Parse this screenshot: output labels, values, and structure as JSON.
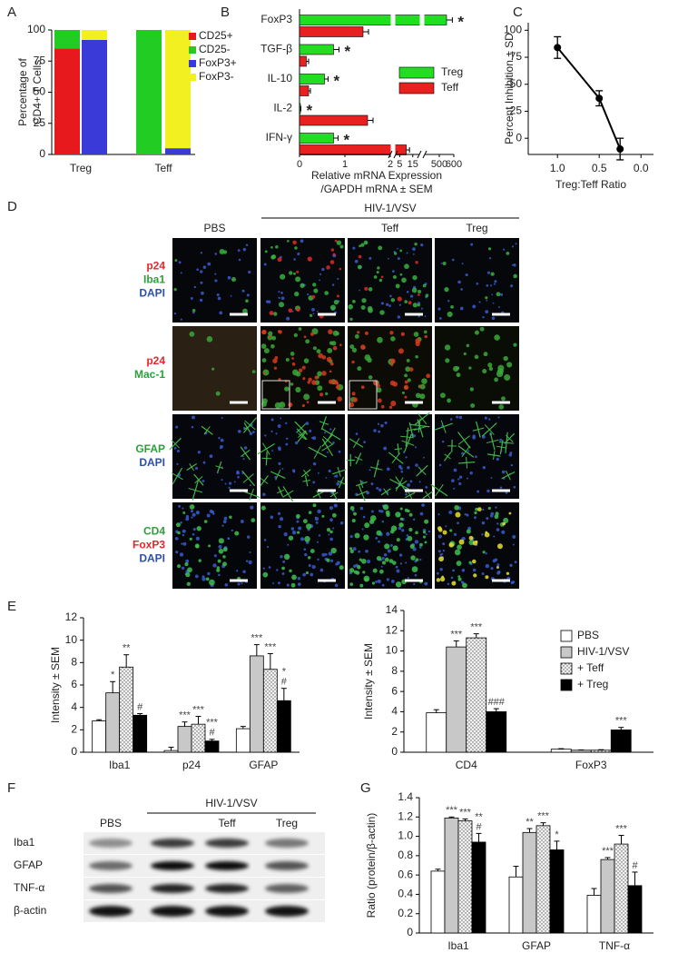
{
  "chart_data": [
    {
      "panel": "A",
      "type": "stacked_bar",
      "ylabel": [
        "Percentage of",
        "CD4+ T Cells"
      ],
      "categories": [
        "Treg",
        null,
        "Teff",
        null
      ],
      "series": [
        {
          "name": "CD25+",
          "color": "#e8191c",
          "values": [
            85,
            null,
            0,
            null
          ]
        },
        {
          "name": "CD25-",
          "color": "#22cc22",
          "values": [
            15,
            null,
            100,
            null
          ]
        },
        {
          "name": "FoxP3+",
          "color": "#3a3ad8",
          "values": [
            null,
            92,
            null,
            5
          ]
        },
        {
          "name": "FoxP3-",
          "color": "#f2f020",
          "values": [
            null,
            8,
            null,
            95
          ]
        }
      ],
      "ylim": [
        0,
        100
      ],
      "yticks": [
        0,
        25,
        50,
        75,
        100
      ]
    },
    {
      "panel": "B",
      "type": "barh",
      "categories": [
        "FoxP3",
        "TGF-β",
        "IL-10",
        "IL-2",
        "IFN-γ"
      ],
      "series": [
        {
          "name": "Treg",
          "color": "#22dd22",
          "values": [
            550,
            0.75,
            0.55,
            0.02,
            0.75
          ],
          "errors": [
            40,
            0.12,
            0.08,
            0.01,
            0.1
          ]
        },
        {
          "name": "Teff",
          "color": "#e82020",
          "values": [
            1.4,
            0.15,
            0.2,
            1.5,
            10
          ],
          "errors": [
            0.12,
            0.05,
            0.04,
            0.12,
            2.5
          ]
        }
      ],
      "annotations": [
        "*",
        "*",
        "*",
        "*",
        "*"
      ],
      "xlabel": [
        "Relative mRNA Expression",
        "/GAPDH mRNA ± SEM"
      ],
      "xlim": [
        0,
        600
      ],
      "xbreaks": [
        [
          0,
          2
        ],
        [
          2,
          20
        ],
        [
          400,
          600
        ]
      ],
      "xticks": [
        0,
        1,
        2,
        5,
        15,
        500,
        600
      ]
    },
    {
      "panel": "C",
      "type": "line",
      "x": [
        1,
        0.5,
        0.25
      ],
      "values": [
        84,
        37,
        -10
      ],
      "errors": [
        10,
        7,
        10
      ],
      "color": "#000000",
      "xlabel": "Treg:Teff Ratio",
      "ylabel": "Percent Inhibition ± SD",
      "xlim": [
        1.35,
        -0.15
      ],
      "ylim": [
        -15,
        107
      ],
      "xticks": [
        {
          "value": 1,
          "label": "1.0"
        },
        {
          "value": 0.5,
          "label": "0.5"
        },
        {
          "value": 0,
          "label": "0.0"
        }
      ],
      "yticks": [
        0,
        25,
        50,
        75,
        100
      ]
    },
    {
      "panel": "E",
      "type": "bar",
      "ylabel": "Intensity ± SEM",
      "categories": [
        "Iba1",
        "p24",
        "GFAP"
      ],
      "series": [
        {
          "color": "#ffffff",
          "values": [
            2.8,
            0.15,
            2.1
          ],
          "errors": [
            0.1,
            0.3,
            0.2
          ]
        },
        {
          "color": "#c8c8c8",
          "values": [
            5.3,
            2.3,
            8.6
          ],
          "errors": [
            1.0,
            0.4,
            1.0
          ],
          "annotations": [
            [
              "*"
            ],
            [
              "***"
            ],
            [
              "***"
            ]
          ]
        },
        {
          "color": "#eeeeee",
          "pattern": "dotted",
          "values": [
            7.6,
            2.5,
            7.4
          ],
          "errors": [
            1.1,
            0.7,
            1.4
          ],
          "annotations": [
            [
              "**"
            ],
            [
              "***"
            ],
            [
              "***"
            ]
          ]
        },
        {
          "color": "#000000",
          "values": [
            3.3,
            1.0,
            4.6
          ],
          "errors": [
            0.15,
            0.15,
            1.1
          ],
          "annotations": [
            [
              "#"
            ],
            [
              "***",
              "#"
            ],
            [
              "*",
              "#"
            ]
          ]
        }
      ],
      "ylim": [
        0,
        12
      ],
      "yticks": [
        0,
        2,
        4,
        6,
        8,
        10,
        12
      ]
    },
    {
      "type": "bar",
      "ylabel": "Intensity ± SEM",
      "categories": [
        "CD4",
        "FoxP3"
      ],
      "series": [
        {
          "name": "PBS",
          "color": "#ffffff",
          "values": [
            3.9,
            0.3
          ],
          "errors": [
            0.3,
            0.05
          ]
        },
        {
          "name": "HIV-1/VSV",
          "color": "#c8c8c8",
          "values": [
            10.4,
            0.2
          ],
          "errors": [
            0.6,
            0.03
          ],
          "annotations": [
            [
              "***"
            ],
            null
          ]
        },
        {
          "name": "+ Teff",
          "color": "#eeeeee",
          "pattern": "dotted",
          "values": [
            11.3,
            0.2
          ],
          "errors": [
            0.4,
            0.05
          ],
          "annotations": [
            [
              "***"
            ],
            null
          ]
        },
        {
          "name": "+ Treg",
          "color": "#000000",
          "values": [
            4.0,
            2.2
          ],
          "errors": [
            0.3,
            0.25
          ],
          "annotations": [
            [
              "###"
            ],
            [
              "***"
            ]
          ]
        }
      ],
      "ylim": [
        0,
        14
      ],
      "yticks": [
        0,
        2,
        4,
        6,
        8,
        10,
        12,
        14
      ],
      "legend": "top-right"
    },
    {
      "panel": "G",
      "type": "bar",
      "ylabel": "Ratio (protein/β-actin)",
      "categories": [
        "Iba1",
        "GFAP",
        "TNF-α"
      ],
      "series": [
        {
          "color": "#ffffff",
          "values": [
            0.64,
            0.58,
            0.39
          ],
          "errors": [
            0.02,
            0.11,
            0.07
          ]
        },
        {
          "color": "#c8c8c8",
          "values": [
            1.19,
            1.04,
            0.76
          ],
          "errors": [
            0.01,
            0.04,
            0.02
          ],
          "annotations": [
            [
              "***"
            ],
            [
              "**"
            ],
            [
              "***"
            ]
          ]
        },
        {
          "color": "#eeeeee",
          "pattern": "dotted",
          "values": [
            1.16,
            1.11,
            0.92
          ],
          "errors": [
            0.02,
            0.03,
            0.09
          ],
          "annotations": [
            [
              "***"
            ],
            [
              "***"
            ],
            [
              "***"
            ]
          ]
        },
        {
          "color": "#000000",
          "values": [
            0.94,
            0.86,
            0.49
          ],
          "errors": [
            0.09,
            0.09,
            0.14
          ],
          "annotations": [
            [
              "**",
              "#"
            ],
            [
              "*"
            ],
            [
              "#"
            ]
          ]
        }
      ],
      "ylim": [
        0,
        1.4
      ],
      "yticks": [
        0,
        0.2,
        0.4,
        0.6,
        0.8,
        {
          "value": 1,
          "label": "1.0"
        },
        1.2,
        1.4
      ]
    }
  ],
  "micrographs": {
    "panel": "D",
    "group_label": "HIV-1/VSV",
    "columns": [
      "PBS",
      null,
      "Teff",
      "Treg"
    ],
    "rows": [
      [
        {
          "text": "p24",
          "color": "#e8262a"
        },
        {
          "text": "Iba1",
          "color": "#2e9e3a"
        },
        {
          "text": "DAPI",
          "color": "#2a4fb0"
        }
      ],
      [
        {
          "text": "p24",
          "color": "#e8262a"
        },
        {
          "text": "Mac-1",
          "color": "#2e9e3a"
        }
      ],
      [
        {
          "text": "GFAP",
          "color": "#2e9e3a"
        },
        {
          "text": "DAPI",
          "color": "#2a4fb0"
        }
      ],
      [
        {
          "text": "CD4",
          "color": "#2e9e3a"
        },
        {
          "text": "FoxP3",
          "color": "#e8262a"
        },
        {
          "text": "DAPI",
          "color": "#2a4fb0"
        }
      ]
    ]
  },
  "western_blot": {
    "panel": "F",
    "group_label": "HIV-1/VSV",
    "columns": [
      "PBS",
      null,
      "Teff",
      "Treg"
    ],
    "rows": [
      "Iba1",
      "GFAP",
      "TNF-α",
      "β-actin"
    ]
  }
}
